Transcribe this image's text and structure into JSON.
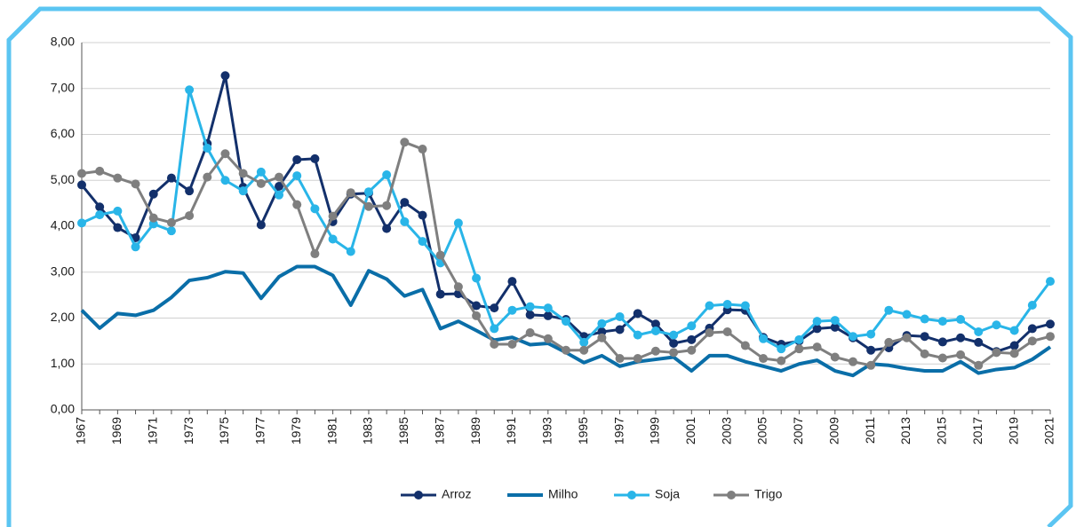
{
  "chart_data": {
    "type": "line",
    "categories": [
      "1967",
      null,
      "1969",
      null,
      "1971",
      null,
      "1973",
      null,
      "1975",
      null,
      "1977",
      null,
      "1979",
      null,
      "1981",
      null,
      "1983",
      null,
      "1985",
      null,
      "1987",
      null,
      "1989",
      null,
      "1991",
      null,
      "1993",
      null,
      "1995",
      null,
      "1997",
      null,
      "1999",
      null,
      "2001",
      null,
      "2003",
      null,
      "2005",
      null,
      "2007",
      null,
      "2009",
      null,
      "2011",
      null,
      "2013",
      null,
      "2015",
      null,
      "2017",
      null,
      "2019",
      null,
      "2021"
    ],
    "series": [
      {
        "name": "Arroz",
        "color": "#13306b",
        "markers": true,
        "values": [
          4.9,
          4.42,
          3.97,
          3.75,
          4.7,
          5.05,
          4.77,
          5.8,
          7.28,
          4.85,
          4.03,
          4.87,
          5.45,
          5.47,
          4.1,
          4.7,
          4.72,
          3.95,
          4.52,
          4.24,
          2.52,
          2.53,
          2.27,
          2.22,
          2.8,
          2.07,
          2.05,
          1.97,
          1.6,
          1.7,
          1.75,
          2.1,
          1.87,
          1.45,
          1.53,
          1.78,
          2.18,
          2.17,
          1.58,
          1.43,
          1.5,
          1.77,
          1.8,
          1.57,
          1.3,
          1.35,
          1.62,
          1.6,
          1.48,
          1.57,
          1.47,
          1.27,
          1.4,
          1.77,
          1.87
        ]
      },
      {
        "name": "Milho",
        "color": "#0a6ea8",
        "markers": false,
        "values": [
          2.17,
          1.78,
          2.1,
          2.06,
          2.17,
          2.45,
          2.82,
          2.88,
          3.01,
          2.98,
          2.43,
          2.9,
          3.12,
          3.12,
          2.93,
          2.28,
          3.03,
          2.85,
          2.48,
          2.62,
          1.77,
          1.93,
          1.73,
          1.52,
          1.58,
          1.42,
          1.45,
          1.25,
          1.03,
          1.18,
          0.95,
          1.05,
          1.1,
          1.15,
          0.85,
          1.18,
          1.18,
          1.05,
          0.95,
          0.85,
          1.0,
          1.08,
          0.85,
          0.75,
          1.0,
          0.97,
          0.9,
          0.85,
          0.85,
          1.05,
          0.8,
          0.88,
          0.92,
          1.1,
          1.37
        ]
      },
      {
        "name": "Soja",
        "color": "#29b5e8",
        "markers": true,
        "values": [
          4.07,
          4.25,
          4.33,
          3.55,
          4.05,
          3.9,
          6.97,
          5.7,
          5.0,
          4.77,
          5.18,
          4.68,
          5.1,
          4.38,
          3.72,
          3.45,
          4.75,
          5.12,
          4.1,
          3.67,
          3.2,
          4.07,
          2.87,
          1.77,
          2.17,
          2.25,
          2.22,
          1.93,
          1.47,
          1.88,
          2.03,
          1.63,
          1.72,
          1.63,
          1.83,
          2.27,
          2.3,
          2.27,
          1.55,
          1.33,
          1.53,
          1.93,
          1.95,
          1.6,
          1.65,
          2.17,
          2.08,
          1.98,
          1.93,
          1.97,
          1.7,
          1.85,
          1.73,
          2.28,
          2.8
        ]
      },
      {
        "name": "Trigo",
        "color": "#7f7f7f",
        "markers": true,
        "values": [
          5.15,
          5.2,
          5.05,
          4.92,
          4.18,
          4.08,
          4.23,
          5.07,
          5.58,
          5.15,
          4.93,
          5.07,
          4.47,
          3.4,
          4.22,
          4.73,
          4.43,
          4.45,
          5.83,
          5.68,
          3.37,
          2.68,
          2.05,
          1.43,
          1.43,
          1.68,
          1.55,
          1.3,
          1.3,
          1.57,
          1.12,
          1.12,
          1.28,
          1.25,
          1.3,
          1.68,
          1.7,
          1.4,
          1.12,
          1.07,
          1.33,
          1.37,
          1.15,
          1.05,
          0.97,
          1.47,
          1.57,
          1.22,
          1.13,
          1.2,
          0.97,
          1.25,
          1.23,
          1.5,
          1.6
        ]
      }
    ],
    "ylim": [
      0,
      8
    ],
    "yticks": [
      {
        "value": 0,
        "label": "0,00"
      },
      {
        "value": 1,
        "label": "1,00"
      },
      {
        "value": 2,
        "label": "2,00"
      },
      {
        "value": 3,
        "label": "3,00"
      },
      {
        "value": 4,
        "label": "4,00"
      },
      {
        "value": 5,
        "label": "5,00"
      },
      {
        "value": 6,
        "label": "6,00"
      },
      {
        "value": 7,
        "label": "7,00"
      },
      {
        "value": 8,
        "label": "8,00"
      }
    ],
    "grid": true,
    "legend": "bottom"
  }
}
